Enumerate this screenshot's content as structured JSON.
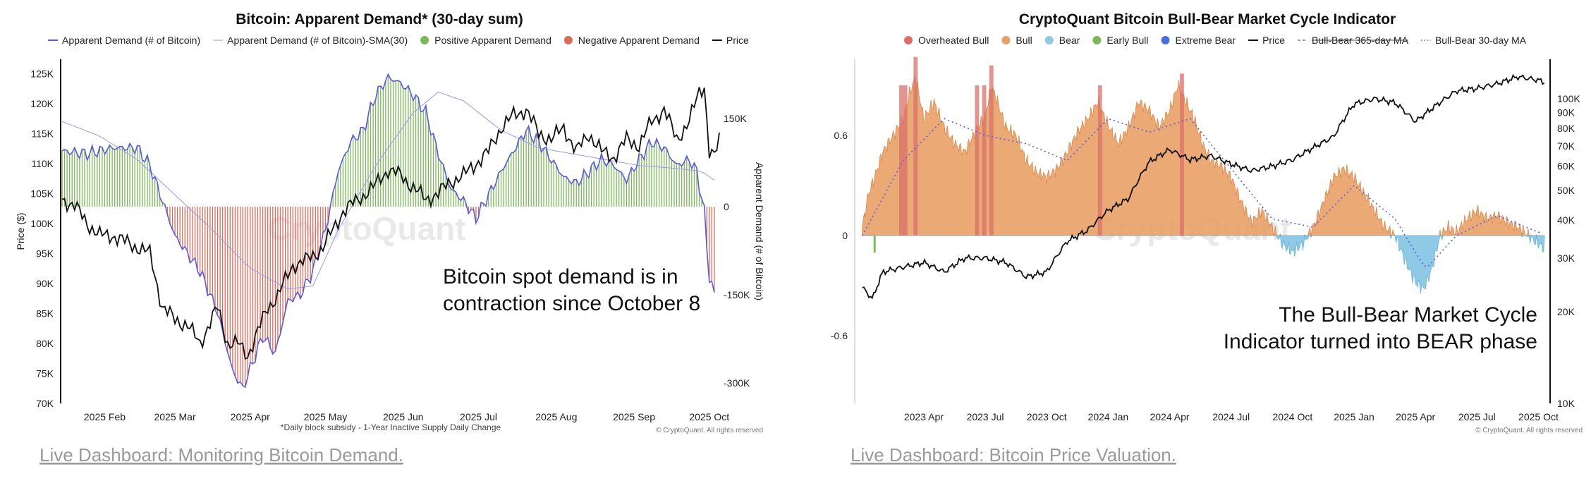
{
  "chart_data": [
    {
      "type": "bar",
      "title": "Bitcoin: Apparent Demand* (30-day sum)",
      "legend": [
        {
          "label": "Apparent Demand (# of Bitcoin)",
          "color": "#5a5ad8",
          "kind": "line"
        },
        {
          "label": "Apparent Demand (# of Bitcoin)-SMA(30)",
          "color": "#9a9ae6",
          "kind": "thin-line"
        },
        {
          "label": "Positive Apparent Demand",
          "color": "#7cb85a",
          "kind": "dot"
        },
        {
          "label": "Negative Apparent Demand",
          "color": "#d96b5b",
          "kind": "dot"
        },
        {
          "label": "Price",
          "color": "#111111",
          "kind": "line"
        }
      ],
      "ylabel_left": "Price ($)",
      "ylabel_right": "Apparent Demand (# of Bitcoin)",
      "price_ticks": [
        "125K",
        "120K",
        "115K",
        "110K",
        "105K",
        "100K",
        "95K",
        "90K",
        "85K",
        "80K",
        "75K",
        "70K"
      ],
      "price_tick_values": [
        125,
        120,
        115,
        110,
        105,
        100,
        95,
        90,
        85,
        80,
        75,
        70
      ],
      "price_range": [
        70,
        125.5
      ],
      "demand_ticks": [
        "150K",
        "0",
        "-150K",
        "-300K"
      ],
      "demand_tick_values": [
        150,
        0,
        -150,
        -300
      ],
      "demand_range": [
        -350,
        230
      ],
      "x_ticks": [
        "2025 Feb",
        "2025 Mar",
        "2025 Apr",
        "2025 May",
        "2025 Jun",
        "2025 Jul",
        "2025 Aug",
        "2025 Sep",
        "2025 Oct"
      ],
      "x_tick_days": [
        17,
        45,
        75,
        105,
        136,
        166,
        197,
        228,
        258
      ],
      "x_range_days": [
        0,
        262
      ],
      "footnote": "*Daily block subsidy - 1-Year Inactive Supply Daily Change",
      "copyright": "© CryptoQuant. All rights reserved",
      "annotation": [
        "Bitcoin spot demand is in",
        "contraction since October 8"
      ],
      "watermark": "CryptoQuant",
      "demand_keypoints_k": [
        [
          0,
          95
        ],
        [
          10,
          90
        ],
        [
          20,
          100
        ],
        [
          30,
          100
        ],
        [
          35,
          70
        ],
        [
          40,
          10
        ],
        [
          45,
          -50
        ],
        [
          55,
          -110
        ],
        [
          62,
          -180
        ],
        [
          68,
          -280
        ],
        [
          72,
          -310
        ],
        [
          80,
          -220
        ],
        [
          85,
          -250
        ],
        [
          90,
          -160
        ],
        [
          95,
          -150
        ],
        [
          100,
          -110
        ],
        [
          105,
          -40
        ],
        [
          110,
          60
        ],
        [
          115,
          110
        ],
        [
          120,
          130
        ],
        [
          125,
          190
        ],
        [
          130,
          220
        ],
        [
          135,
          210
        ],
        [
          140,
          190
        ],
        [
          145,
          160
        ],
        [
          150,
          90
        ],
        [
          155,
          30
        ],
        [
          160,
          10
        ],
        [
          165,
          -20
        ],
        [
          170,
          20
        ],
        [
          175,
          60
        ],
        [
          180,
          95
        ],
        [
          185,
          130
        ],
        [
          190,
          110
        ],
        [
          195,
          80
        ],
        [
          200,
          50
        ],
        [
          205,
          40
        ],
        [
          210,
          60
        ],
        [
          215,
          80
        ],
        [
          220,
          70
        ],
        [
          225,
          45
        ],
        [
          230,
          80
        ],
        [
          235,
          110
        ],
        [
          240,
          100
        ],
        [
          245,
          70
        ],
        [
          250,
          80
        ],
        [
          253,
          60
        ],
        [
          256,
          -10
        ],
        [
          258,
          -120
        ],
        [
          260,
          -150
        ]
      ],
      "sma_keypoints_k": [
        [
          0,
          145
        ],
        [
          15,
          120
        ],
        [
          30,
          80
        ],
        [
          45,
          20
        ],
        [
          60,
          -40
        ],
        [
          75,
          -105
        ],
        [
          90,
          -140
        ],
        [
          100,
          -135
        ],
        [
          110,
          -40
        ],
        [
          125,
          70
        ],
        [
          140,
          160
        ],
        [
          150,
          195
        ],
        [
          160,
          180
        ],
        [
          175,
          130
        ],
        [
          190,
          100
        ],
        [
          210,
          85
        ],
        [
          230,
          70
        ],
        [
          245,
          65
        ],
        [
          255,
          60
        ],
        [
          260,
          45
        ]
      ],
      "price_keypoints_k": [
        [
          0,
          104
        ],
        [
          5,
          103
        ],
        [
          10,
          100
        ],
        [
          15,
          98
        ],
        [
          20,
          98
        ],
        [
          25,
          97
        ],
        [
          30,
          96
        ],
        [
          35,
          95
        ],
        [
          40,
          86
        ],
        [
          45,
          84
        ],
        [
          50,
          83
        ],
        [
          55,
          80
        ],
        [
          62,
          86
        ],
        [
          66,
          80
        ],
        [
          70,
          80
        ],
        [
          74,
          78
        ],
        [
          78,
          82
        ],
        [
          82,
          86
        ],
        [
          86,
          88
        ],
        [
          92,
          93
        ],
        [
          98,
          94
        ],
        [
          104,
          96
        ],
        [
          108,
          99
        ],
        [
          112,
          102
        ],
        [
          118,
          104
        ],
        [
          124,
          106
        ],
        [
          130,
          109
        ],
        [
          135,
          108
        ],
        [
          140,
          106
        ],
        [
          145,
          104
        ],
        [
          150,
          105
        ],
        [
          155,
          107
        ],
        [
          160,
          108
        ],
        [
          165,
          110
        ],
        [
          170,
          112
        ],
        [
          175,
          116
        ],
        [
          180,
          118
        ],
        [
          185,
          119
        ],
        [
          190,
          115
        ],
        [
          195,
          114
        ],
        [
          200,
          116
        ],
        [
          205,
          112
        ],
        [
          210,
          115
        ],
        [
          215,
          112
        ],
        [
          220,
          111
        ],
        [
          225,
          114
        ],
        [
          230,
          113
        ],
        [
          235,
          117
        ],
        [
          240,
          119
        ],
        [
          245,
          114
        ],
        [
          250,
          117
        ],
        [
          254,
          122
        ],
        [
          256,
          123
        ],
        [
          258,
          112
        ],
        [
          260,
          111
        ],
        [
          262,
          114
        ]
      ]
    },
    {
      "type": "area",
      "title": "CryptoQuant Bitcoin Bull-Bear Market Cycle Indicator",
      "legend": [
        {
          "label": "Overheated Bull",
          "color": "#d9706a",
          "kind": "dot"
        },
        {
          "label": "Bull",
          "color": "#e8a066",
          "kind": "dot"
        },
        {
          "label": "Bear",
          "color": "#8ec9e6",
          "kind": "dot"
        },
        {
          "label": "Early Bull",
          "color": "#7cb85a",
          "kind": "dot"
        },
        {
          "label": "Extreme Bear",
          "color": "#4a6ed9",
          "kind": "dot"
        },
        {
          "label": "Price",
          "color": "#111111",
          "kind": "line"
        },
        {
          "label": "Bull-Bear 365-day MA",
          "color": "#777777",
          "kind": "dash",
          "strike": true
        },
        {
          "label": "Bull-Bear 30-day MA",
          "color": "#5a5ad8",
          "kind": "dots"
        }
      ],
      "left_ticks": [
        "0.6",
        "0",
        "-0.6"
      ],
      "left_tick_values": [
        0.6,
        0,
        -0.6
      ],
      "left_range": [
        -1.0,
        1.0
      ],
      "right_ticks": [
        "100K",
        "90K",
        "80K",
        "70K",
        "60K",
        "50K",
        "40K",
        "30K",
        "20K",
        "10K"
      ],
      "right_tick_values": [
        100,
        90,
        80,
        70,
        60,
        50,
        40,
        30,
        20,
        10
      ],
      "right_range_log": [
        10,
        125
      ],
      "x_ticks": [
        "2023 Apr",
        "2023 Jul",
        "2023 Oct",
        "2024 Jan",
        "2024 Apr",
        "2024 Jul",
        "2024 Oct",
        "2025 Jan",
        "2025 Apr",
        "2025 Jul",
        "2025 Oct"
      ],
      "x_tick_months": [
        3,
        6,
        9,
        12,
        15,
        18,
        21,
        24,
        27,
        30,
        33
      ],
      "x_range_months": [
        -0.3,
        33.5
      ],
      "copyright": "© CryptoQuant. All rights reserved",
      "annotation": [
        "The Bull-Bear Market Cycle",
        "Indicator turned into BEAR phase"
      ],
      "watermark": "CryptoQuant",
      "indicator_keypoints": [
        [
          0,
          0.05
        ],
        [
          0.3,
          0.25
        ],
        [
          0.6,
          0.35
        ],
        [
          1,
          0.5
        ],
        [
          1.5,
          0.6
        ],
        [
          2,
          0.7
        ],
        [
          2.3,
          0.85
        ],
        [
          2.6,
          0.95
        ],
        [
          3,
          0.7
        ],
        [
          3.5,
          0.8
        ],
        [
          4,
          0.65
        ],
        [
          4.5,
          0.55
        ],
        [
          5,
          0.5
        ],
        [
          5.5,
          0.62
        ],
        [
          6,
          0.72
        ],
        [
          6.3,
          0.9
        ],
        [
          6.6,
          0.8
        ],
        [
          7,
          0.65
        ],
        [
          7.5,
          0.6
        ],
        [
          8,
          0.45
        ],
        [
          8.5,
          0.38
        ],
        [
          9,
          0.35
        ],
        [
          9.5,
          0.4
        ],
        [
          10,
          0.5
        ],
        [
          10.5,
          0.62
        ],
        [
          11,
          0.7
        ],
        [
          11.5,
          0.8
        ],
        [
          12,
          0.66
        ],
        [
          12.5,
          0.55
        ],
        [
          13,
          0.65
        ],
        [
          13.5,
          0.8
        ],
        [
          14,
          0.75
        ],
        [
          14.5,
          0.65
        ],
        [
          15,
          0.75
        ],
        [
          15.4,
          0.9
        ],
        [
          15.8,
          0.8
        ],
        [
          16.2,
          0.7
        ],
        [
          16.6,
          0.55
        ],
        [
          17,
          0.45
        ],
        [
          17.5,
          0.42
        ],
        [
          18,
          0.35
        ],
        [
          18.5,
          0.2
        ],
        [
          19,
          0.08
        ],
        [
          19.5,
          0.15
        ],
        [
          20,
          0.05
        ],
        [
          20.5,
          -0.05
        ],
        [
          21,
          -0.1
        ],
        [
          21.5,
          -0.05
        ],
        [
          22,
          0.05
        ],
        [
          22.5,
          0.2
        ],
        [
          23,
          0.35
        ],
        [
          23.5,
          0.4
        ],
        [
          24,
          0.35
        ],
        [
          24.5,
          0.25
        ],
        [
          25,
          0.15
        ],
        [
          25.5,
          0.05
        ],
        [
          26,
          0.0
        ],
        [
          26.5,
          -0.15
        ],
        [
          27,
          -0.28
        ],
        [
          27.4,
          -0.32
        ],
        [
          27.8,
          -0.2
        ],
        [
          28.2,
          0.0
        ],
        [
          28.6,
          0.05
        ],
        [
          29,
          0.02
        ],
        [
          29.5,
          0.1
        ],
        [
          30,
          0.15
        ],
        [
          30.5,
          0.1
        ],
        [
          31,
          0.12
        ],
        [
          31.5,
          0.08
        ],
        [
          32,
          0.05
        ],
        [
          32.5,
          0.0
        ],
        [
          33,
          -0.05
        ],
        [
          33.3,
          -0.08
        ]
      ],
      "overheated_months": [
        [
          1.8,
          2.2
        ],
        [
          2.5,
          2.7
        ],
        [
          5.5,
          5.7
        ],
        [
          5.85,
          6.05
        ],
        [
          6.2,
          6.4
        ],
        [
          11.5,
          11.7
        ],
        [
          15.5,
          15.7
        ]
      ],
      "ma30_keypoints": [
        [
          0,
          0.0
        ],
        [
          2,
          0.45
        ],
        [
          4,
          0.7
        ],
        [
          6,
          0.6
        ],
        [
          8,
          0.55
        ],
        [
          10,
          0.45
        ],
        [
          12,
          0.7
        ],
        [
          14,
          0.62
        ],
        [
          16,
          0.7
        ],
        [
          18,
          0.4
        ],
        [
          20,
          0.1
        ],
        [
          22,
          0.05
        ],
        [
          24,
          0.3
        ],
        [
          26,
          0.1
        ],
        [
          27.5,
          -0.2
        ],
        [
          29,
          0.0
        ],
        [
          31,
          0.12
        ],
        [
          33,
          0.02
        ]
      ],
      "price_keypoints_k": [
        [
          0,
          24
        ],
        [
          0.5,
          22
        ],
        [
          1,
          27
        ],
        [
          2,
          28
        ],
        [
          3,
          29
        ],
        [
          4,
          27
        ],
        [
          5,
          30
        ],
        [
          6,
          30
        ],
        [
          7,
          29
        ],
        [
          8,
          26
        ],
        [
          9,
          27
        ],
        [
          10,
          34
        ],
        [
          11,
          37
        ],
        [
          12,
          43
        ],
        [
          13,
          47
        ],
        [
          14,
          62
        ],
        [
          15,
          68
        ],
        [
          16,
          63
        ],
        [
          17,
          65
        ],
        [
          18,
          61
        ],
        [
          19,
          58
        ],
        [
          20,
          60
        ],
        [
          21,
          63
        ],
        [
          22,
          69
        ],
        [
          23,
          75
        ],
        [
          24,
          96
        ],
        [
          25,
          100
        ],
        [
          26,
          97
        ],
        [
          27,
          84
        ],
        [
          28,
          95
        ],
        [
          29,
          106
        ],
        [
          30,
          108
        ],
        [
          31,
          112
        ],
        [
          32,
          118
        ],
        [
          33,
          115
        ],
        [
          33.3,
          113
        ]
      ]
    }
  ],
  "links": [
    "Live Dashboard: Monitoring Bitcoin Demand.",
    "Live Dashboard: Bitcoin Price Valuation."
  ]
}
